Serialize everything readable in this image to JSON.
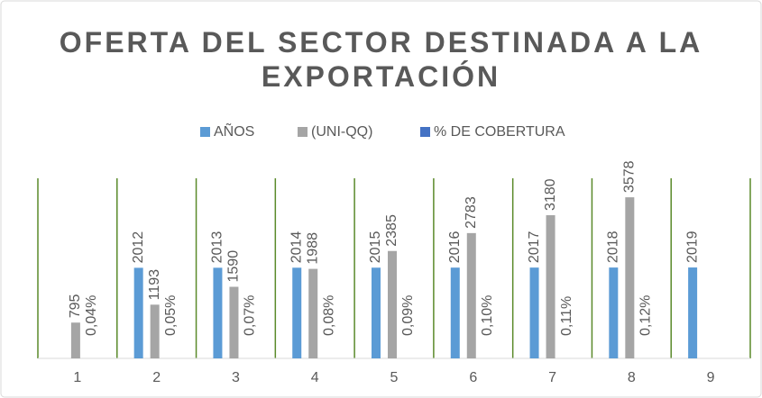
{
  "chart_data": {
    "type": "bar",
    "title": "OFERTA DEL SECTOR DESTINADA A LA EXPORTACIÓN",
    "categories": [
      "1",
      "2",
      "3",
      "4",
      "5",
      "6",
      "7",
      "8",
      "9"
    ],
    "series": [
      {
        "name": "AÑOS",
        "color": "#5b9bd5",
        "values": [
          null,
          2012,
          2013,
          2014,
          2015,
          2016,
          2017,
          2018,
          2019
        ]
      },
      {
        "name": "(UNI-QQ)",
        "color": "#a5a5a5",
        "values": [
          795,
          1193,
          1590,
          1988,
          2385,
          2783,
          3180,
          3578,
          null
        ]
      },
      {
        "name": "% DE COBERTURA",
        "color": "#4472c4",
        "values": [
          0.04,
          0.05,
          0.07,
          0.08,
          0.09,
          0.1,
          0.11,
          0.12,
          null
        ],
        "value_labels": [
          "0,04%",
          "0,05%",
          "0,07%",
          "0,08%",
          "0,09%",
          "0,10%",
          "0,11%",
          "0,12%",
          null
        ]
      }
    ],
    "ylim": [
      0,
      4000
    ],
    "legend": "top",
    "grid": "vertical"
  }
}
